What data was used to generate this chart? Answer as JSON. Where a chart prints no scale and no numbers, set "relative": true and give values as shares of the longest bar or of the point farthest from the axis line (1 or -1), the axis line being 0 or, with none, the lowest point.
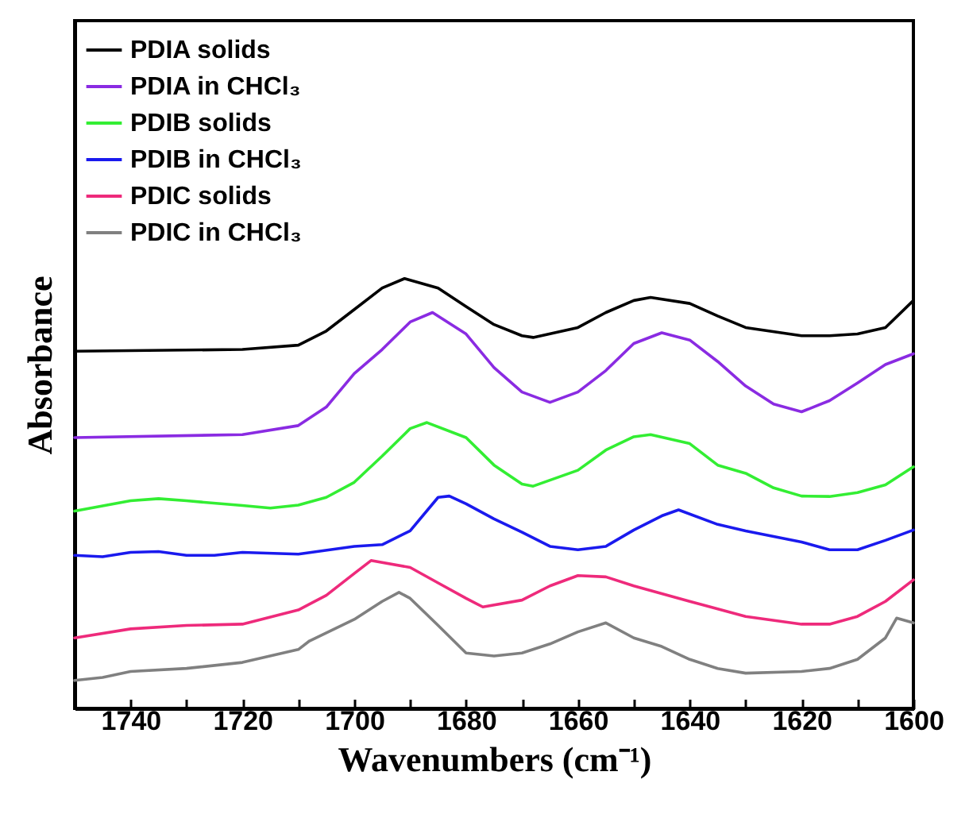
{
  "chart_data": {
    "type": "line",
    "relative": true,
    "xlabel": "Wavenumbers (cm⁻¹)",
    "ylabel": "Absorbance",
    "xlim": [
      1750,
      1600
    ],
    "xticks": [
      1740,
      {
        "value": 1730,
        "label": null
      },
      1720,
      {
        "value": 1710,
        "label": null
      },
      1700,
      {
        "value": 1690,
        "label": null
      },
      1680,
      {
        "value": 1670,
        "label": null
      },
      1660,
      {
        "value": 1650,
        "label": null
      },
      1640,
      {
        "value": 1630,
        "label": null
      },
      1620,
      {
        "value": 1610,
        "label": null
      },
      1600
    ],
    "grid": false,
    "legend": "top left",
    "tick_labels": "x",
    "series": [
      {
        "name": "PDIA solids",
        "color": "#000000",
        "x": [
          1750,
          1720,
          1710,
          1705,
          1700,
          1695,
          1691,
          1685,
          1680,
          1675,
          1670,
          1668,
          1660,
          1655,
          1650,
          1647,
          1640,
          1635,
          1630,
          1620,
          1615,
          1610,
          1605,
          1600
        ],
        "values": [
          0.831,
          0.835,
          0.845,
          0.878,
          0.928,
          0.978,
          1.0,
          0.978,
          0.935,
          0.893,
          0.867,
          0.863,
          0.886,
          0.921,
          0.949,
          0.956,
          0.942,
          0.913,
          0.886,
          0.867,
          0.867,
          0.871,
          0.886,
          0.949
        ]
      },
      {
        "name": "PDIA in CHCl₃",
        "color": "#8a2be2",
        "x": [
          1750,
          1720,
          1710,
          1705,
          1700,
          1695,
          1690,
          1686,
          1680,
          1675,
          1670,
          1665,
          1660,
          1655,
          1650,
          1645,
          1640,
          1635,
          1630,
          1625,
          1620,
          1615,
          1610,
          1605,
          1600
        ],
        "values": [
          0.63,
          0.637,
          0.658,
          0.701,
          0.779,
          0.835,
          0.899,
          0.921,
          0.871,
          0.793,
          0.736,
          0.712,
          0.736,
          0.786,
          0.849,
          0.874,
          0.857,
          0.807,
          0.75,
          0.708,
          0.69,
          0.716,
          0.757,
          0.8,
          0.825
        ]
      },
      {
        "name": "PDIB solids",
        "color": "#33ee33",
        "x": [
          1750,
          1740,
          1735,
          1730,
          1720,
          1715,
          1710,
          1705,
          1700,
          1695,
          1690,
          1687,
          1680,
          1675,
          1670,
          1668,
          1660,
          1655,
          1650,
          1647,
          1640,
          1635,
          1630,
          1625,
          1620,
          1615,
          1610,
          1605,
          1600
        ],
        "values": [
          0.459,
          0.483,
          0.488,
          0.483,
          0.472,
          0.466,
          0.473,
          0.491,
          0.526,
          0.587,
          0.651,
          0.665,
          0.63,
          0.566,
          0.522,
          0.517,
          0.554,
          0.601,
          0.632,
          0.637,
          0.616,
          0.566,
          0.547,
          0.513,
          0.494,
          0.493,
          0.502,
          0.52,
          0.562
        ]
      },
      {
        "name": "PDIB in CHCl₃",
        "color": "#1a1aee",
        "x": [
          1750,
          1745,
          1740,
          1735,
          1730,
          1725,
          1720,
          1710,
          1700,
          1695,
          1690,
          1685,
          1683,
          1680,
          1675,
          1670,
          1665,
          1660,
          1655,
          1650,
          1645,
          1642,
          1635,
          1630,
          1620,
          1615,
          1610,
          1605,
          1600
        ],
        "values": [
          0.356,
          0.353,
          0.363,
          0.365,
          0.356,
          0.356,
          0.363,
          0.359,
          0.377,
          0.381,
          0.413,
          0.491,
          0.494,
          0.476,
          0.441,
          0.41,
          0.377,
          0.369,
          0.377,
          0.415,
          0.448,
          0.462,
          0.428,
          0.413,
          0.387,
          0.369,
          0.369,
          0.391,
          0.415
        ]
      },
      {
        "name": "PDIC solids",
        "color": "#ee2a7b",
        "x": [
          1750,
          1740,
          1730,
          1720,
          1710,
          1705,
          1700,
          1697,
          1690,
          1685,
          1680,
          1677,
          1670,
          1665,
          1660,
          1655,
          1650,
          1640,
          1630,
          1620,
          1615,
          1610,
          1605,
          1600
        ],
        "values": [
          0.164,
          0.185,
          0.193,
          0.196,
          0.229,
          0.263,
          0.314,
          0.344,
          0.328,
          0.292,
          0.256,
          0.236,
          0.252,
          0.285,
          0.309,
          0.306,
          0.285,
          0.249,
          0.214,
          0.196,
          0.196,
          0.214,
          0.249,
          0.299
        ]
      },
      {
        "name": "PDIC in CHCl₃",
        "color": "#808080",
        "x": [
          1750,
          1745,
          1740,
          1730,
          1720,
          1710,
          1708,
          1700,
          1695,
          1692,
          1690,
          1685,
          1680,
          1675,
          1670,
          1665,
          1660,
          1655,
          1650,
          1645,
          1640,
          1635,
          1630,
          1620,
          1615,
          1610,
          1605,
          1603,
          1600
        ],
        "values": [
          0.065,
          0.072,
          0.086,
          0.093,
          0.107,
          0.137,
          0.157,
          0.207,
          0.249,
          0.27,
          0.256,
          0.193,
          0.129,
          0.122,
          0.129,
          0.15,
          0.178,
          0.199,
          0.164,
          0.144,
          0.114,
          0.093,
          0.082,
          0.086,
          0.093,
          0.114,
          0.164,
          0.21,
          0.199
        ]
      }
    ]
  }
}
